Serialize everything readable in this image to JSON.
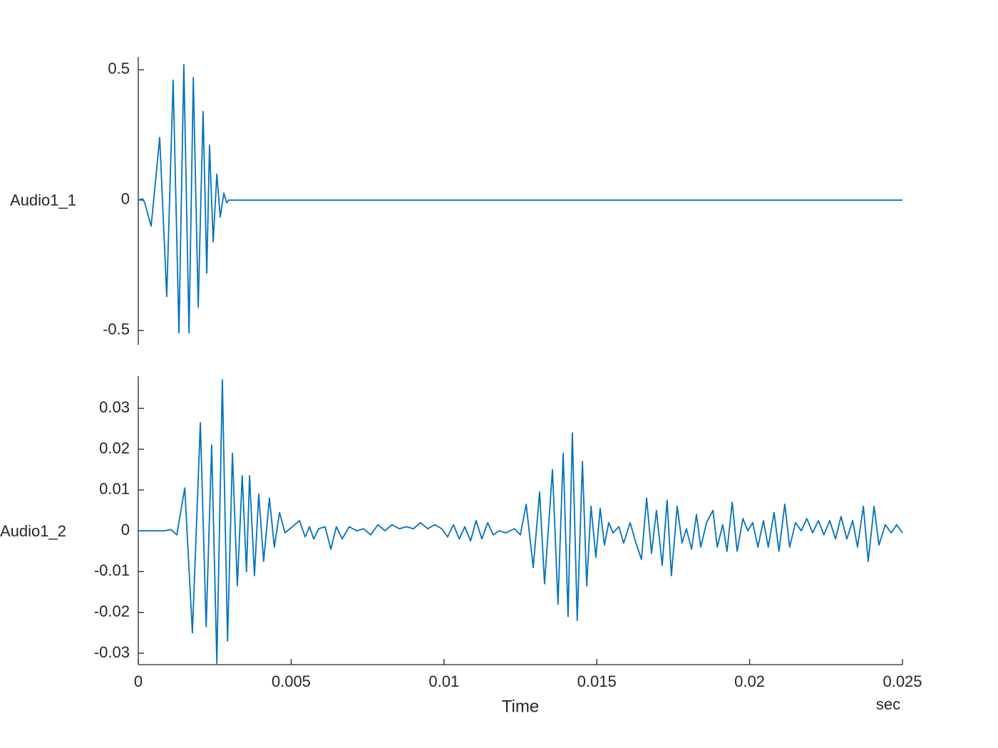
{
  "chart_data": [
    {
      "type": "line",
      "ylabel": "Audio1_1",
      "color": "#0072bd",
      "xlim": [
        0,
        0.025
      ],
      "ylim": [
        -0.555,
        0.549
      ],
      "yticks": [
        -0.5,
        0,
        0.5
      ],
      "x": [
        0,
        0.00014,
        0.00021,
        0.00042,
        0.0007,
        0.00093,
        0.00114,
        0.00133,
        0.00149,
        0.00166,
        0.0018,
        0.00196,
        0.00212,
        0.00224,
        0.00233,
        0.00245,
        0.00257,
        0.00268,
        0.0028,
        0.00289,
        0.00296,
        0.025
      ],
      "values": [
        0,
        0.005,
        -0.01,
        -0.1,
        0.24,
        -0.37,
        0.46,
        -0.51,
        0.52,
        -0.51,
        0.47,
        -0.41,
        0.34,
        -0.28,
        0.21,
        -0.16,
        0.1,
        -0.065,
        0.027,
        -0.01,
        0,
        0
      ]
    },
    {
      "type": "line",
      "ylabel": "Audio1_2",
      "xlabel": "Time",
      "xunit": "sec",
      "color": "#0072bd",
      "xlim": [
        0,
        0.025
      ],
      "ylim": [
        -0.0328,
        0.0379
      ],
      "yticks": [
        -0.03,
        -0.02,
        -0.01,
        0,
        0.01,
        0.02,
        0.03
      ],
      "xticks": [
        0,
        0.005,
        0.01,
        0.015,
        0.02,
        0.025
      ],
      "x": [
        0,
        0.00084,
        0.00107,
        0.00126,
        0.00152,
        0.00177,
        0.00203,
        0.00222,
        0.0024,
        0.00257,
        0.00275,
        0.00292,
        0.00308,
        0.00324,
        0.0034,
        0.00354,
        0.00364,
        0.0038,
        0.00394,
        0.0041,
        0.00429,
        0.00445,
        0.00462,
        0.0048,
        0.00504,
        0.00527,
        0.00546,
        0.0056,
        0.00574,
        0.0059,
        0.00611,
        0.0063,
        0.00648,
        0.00667,
        0.0069,
        0.00714,
        0.00737,
        0.0076,
        0.00784,
        0.00807,
        0.0083,
        0.00854,
        0.00877,
        0.009,
        0.00923,
        0.00947,
        0.0097,
        0.00993,
        0.01012,
        0.01031,
        0.0105,
        0.01068,
        0.01087,
        0.01105,
        0.01124,
        0.01143,
        0.01161,
        0.0118,
        0.01203,
        0.01231,
        0.0125,
        0.01269,
        0.01292,
        0.01313,
        0.01329,
        0.01355,
        0.01373,
        0.0139,
        0.01406,
        0.0142,
        0.01436,
        0.01453,
        0.01467,
        0.01481,
        0.01497,
        0.01511,
        0.01525,
        0.01539,
        0.01553,
        0.01572,
        0.01588,
        0.01609,
        0.01628,
        0.01646,
        0.01663,
        0.01679,
        0.01695,
        0.01714,
        0.0173,
        0.01744,
        0.01763,
        0.01779,
        0.01793,
        0.0181,
        0.01826,
        0.0184,
        0.01859,
        0.0188,
        0.01894,
        0.01912,
        0.01926,
        0.01943,
        0.01959,
        0.01978,
        0.01994,
        0.0201,
        0.02027,
        0.02045,
        0.02061,
        0.0208,
        0.02096,
        0.02115,
        0.02131,
        0.0215,
        0.02169,
        0.02187,
        0.02206,
        0.02225,
        0.02243,
        0.02262,
        0.02281,
        0.02299,
        0.02318,
        0.02337,
        0.02353,
        0.02372,
        0.02388,
        0.02407,
        0.02423,
        0.02444,
        0.02463,
        0.02481,
        0.025
      ],
      "values": [
        0,
        0,
        0.0003,
        -0.001,
        0.0105,
        -0.025,
        0.0265,
        -0.0235,
        0.021,
        -0.0325,
        0.037,
        -0.027,
        0.019,
        -0.0135,
        0.0135,
        -0.01,
        0.0135,
        -0.011,
        0.009,
        -0.0075,
        0.008,
        -0.004,
        0.0045,
        -0.0005,
        0.001,
        0.0025,
        -0.0015,
        0.001,
        -0.002,
        0.0005,
        0.001,
        -0.0045,
        0.001,
        -0.002,
        0.001,
        0,
        0.0005,
        -0.001,
        0.0015,
        0,
        0.0015,
        0.0005,
        0.001,
        0.0005,
        0.002,
        0.0005,
        0.0015,
        0.0005,
        -0.0015,
        0.0015,
        -0.002,
        0.001,
        -0.0025,
        0.0025,
        -0.002,
        0.002,
        -0.001,
        0,
        -0.0005,
        0.0005,
        -0.001,
        0.0065,
        -0.009,
        0.0095,
        -0.013,
        0.015,
        -0.018,
        0.019,
        -0.021,
        0.024,
        -0.022,
        0.017,
        -0.0135,
        0.006,
        -0.0065,
        0.0055,
        -0.0035,
        0.002,
        -0.0005,
        0.001,
        -0.003,
        0.002,
        -0.003,
        -0.007,
        0.008,
        -0.0055,
        0.005,
        -0.0085,
        0.0075,
        -0.011,
        0.006,
        -0.003,
        0.0005,
        -0.0045,
        0.004,
        -0.004,
        0.002,
        0.005,
        -0.004,
        0.0015,
        -0.005,
        0.007,
        -0.005,
        0.003,
        0,
        0.002,
        -0.004,
        0.0025,
        -0.004,
        0.0045,
        -0.005,
        0.0065,
        -0.004,
        0.002,
        0,
        0.003,
        -0.0005,
        0.0025,
        -0.001,
        0.0025,
        -0.002,
        0.0035,
        -0.002,
        0.0025,
        -0.004,
        0.006,
        -0.0075,
        0.006,
        -0.0035,
        0.0015,
        -0.0005,
        0.0015,
        -0.0005
      ]
    }
  ]
}
